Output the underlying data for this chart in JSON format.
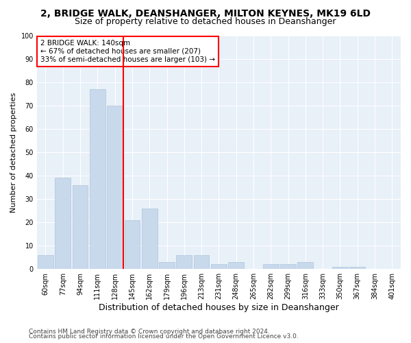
{
  "title1": "2, BRIDGE WALK, DEANSHANGER, MILTON KEYNES, MK19 6LD",
  "title2": "Size of property relative to detached houses in Deanshanger",
  "xlabel": "Distribution of detached houses by size in Deanshanger",
  "ylabel": "Number of detached properties",
  "categories": [
    "60sqm",
    "77sqm",
    "94sqm",
    "111sqm",
    "128sqm",
    "145sqm",
    "162sqm",
    "179sqm",
    "196sqm",
    "213sqm",
    "231sqm",
    "248sqm",
    "265sqm",
    "282sqm",
    "299sqm",
    "316sqm",
    "333sqm",
    "350sqm",
    "367sqm",
    "384sqm",
    "401sqm"
  ],
  "values": [
    6,
    39,
    36,
    77,
    70,
    21,
    26,
    3,
    6,
    6,
    2,
    3,
    0,
    2,
    2,
    3,
    0,
    1,
    1,
    0,
    0
  ],
  "bar_color": "#c8d9ec",
  "bar_edgecolor": "#aec4dc",
  "vline_color": "red",
  "annotation_text": "2 BRIDGE WALK: 140sqm\n← 67% of detached houses are smaller (207)\n33% of semi-detached houses are larger (103) →",
  "annotation_box_color": "white",
  "annotation_box_edgecolor": "red",
  "ylim": [
    0,
    100
  ],
  "yticks": [
    0,
    10,
    20,
    30,
    40,
    50,
    60,
    70,
    80,
    90,
    100
  ],
  "bg_color": "#e8f0f8",
  "grid_color": "#ffffff",
  "footer1": "Contains HM Land Registry data © Crown copyright and database right 2024.",
  "footer2": "Contains public sector information licensed under the Open Government Licence v3.0.",
  "title1_fontsize": 10,
  "title2_fontsize": 9,
  "xlabel_fontsize": 9,
  "ylabel_fontsize": 8,
  "tick_fontsize": 7,
  "annotation_fontsize": 7.5,
  "footer_fontsize": 6.5
}
